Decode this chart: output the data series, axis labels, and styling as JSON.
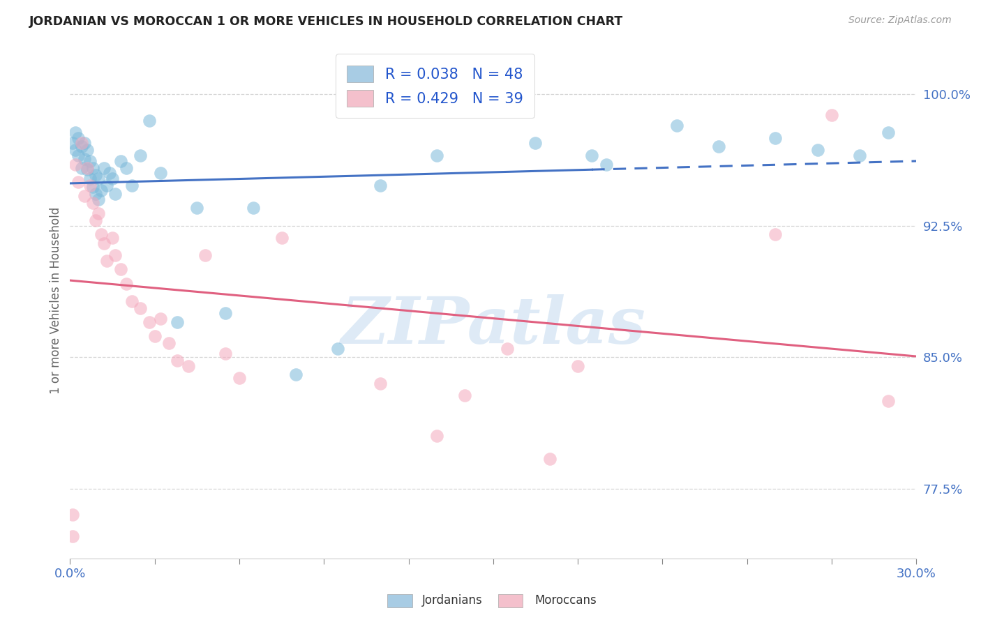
{
  "title": "JORDANIAN VS MOROCCAN 1 OR MORE VEHICLES IN HOUSEHOLD CORRELATION CHART",
  "source": "Source: ZipAtlas.com",
  "ylabel": "1 or more Vehicles in Household",
  "ytick_labels": [
    "77.5%",
    "85.0%",
    "92.5%",
    "100.0%"
  ],
  "ytick_values": [
    0.775,
    0.85,
    0.925,
    1.0
  ],
  "xmin": 0.0,
  "xmax": 0.3,
  "ymin": 0.735,
  "ymax": 1.03,
  "jordanian_R": "0.038",
  "jordanian_N": "48",
  "moroccan_R": "0.429",
  "moroccan_N": "39",
  "jordanian_color": "#7ab8d9",
  "moroccan_color": "#f4a8bc",
  "jordanian_legend_color": "#a8cce4",
  "moroccan_legend_color": "#f4c0cc",
  "trendline_jordanian_color": "#4472c4",
  "trendline_moroccan_color": "#e06080",
  "background_color": "#ffffff",
  "watermark_text": "ZIPatlas",
  "watermark_color": "#c8ddf0",
  "j_solid_cutoff": 0.185,
  "jordanian_x": [
    0.001,
    0.002,
    0.002,
    0.003,
    0.003,
    0.004,
    0.004,
    0.005,
    0.005,
    0.006,
    0.006,
    0.007,
    0.007,
    0.008,
    0.008,
    0.009,
    0.009,
    0.01,
    0.01,
    0.011,
    0.012,
    0.013,
    0.014,
    0.015,
    0.016,
    0.018,
    0.02,
    0.022,
    0.025,
    0.028,
    0.032,
    0.038,
    0.045,
    0.055,
    0.065,
    0.08,
    0.25,
    0.265,
    0.28,
    0.29,
    0.215,
    0.23,
    0.185,
    0.19,
    0.13,
    0.165,
    0.095,
    0.11
  ],
  "jordanian_y": [
    0.972,
    0.968,
    0.978,
    0.965,
    0.975,
    0.958,
    0.97,
    0.963,
    0.972,
    0.957,
    0.968,
    0.952,
    0.962,
    0.947,
    0.958,
    0.943,
    0.954,
    0.94,
    0.952,
    0.945,
    0.958,
    0.948,
    0.955,
    0.952,
    0.943,
    0.962,
    0.958,
    0.948,
    0.965,
    0.985,
    0.955,
    0.87,
    0.935,
    0.875,
    0.935,
    0.84,
    0.975,
    0.968,
    0.965,
    0.978,
    0.982,
    0.97,
    0.965,
    0.96,
    0.965,
    0.972,
    0.855,
    0.948
  ],
  "moroccan_x": [
    0.001,
    0.001,
    0.002,
    0.003,
    0.004,
    0.005,
    0.006,
    0.007,
    0.008,
    0.009,
    0.01,
    0.011,
    0.012,
    0.013,
    0.015,
    0.016,
    0.018,
    0.02,
    0.022,
    0.025,
    0.028,
    0.03,
    0.032,
    0.035,
    0.038,
    0.042,
    0.048,
    0.055,
    0.06,
    0.075,
    0.11,
    0.13,
    0.14,
    0.155,
    0.17,
    0.18,
    0.25,
    0.27,
    0.29
  ],
  "moroccan_y": [
    0.76,
    0.748,
    0.96,
    0.95,
    0.972,
    0.942,
    0.958,
    0.948,
    0.938,
    0.928,
    0.932,
    0.92,
    0.915,
    0.905,
    0.918,
    0.908,
    0.9,
    0.892,
    0.882,
    0.878,
    0.87,
    0.862,
    0.872,
    0.858,
    0.848,
    0.845,
    0.908,
    0.852,
    0.838,
    0.918,
    0.835,
    0.805,
    0.828,
    0.855,
    0.792,
    0.845,
    0.92,
    0.988,
    0.825
  ]
}
